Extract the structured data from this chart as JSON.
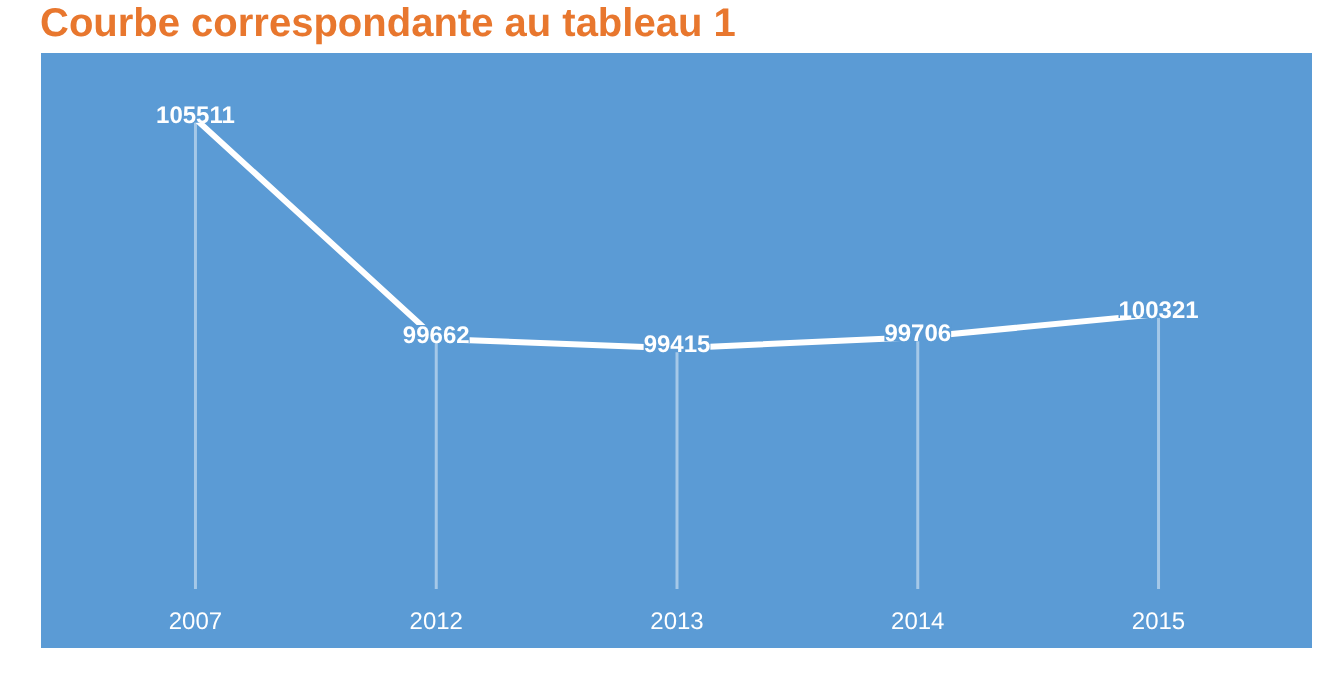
{
  "chart_data": {
    "type": "line",
    "title": "Courbe correspondante au tableau 1",
    "categories": [
      "2007",
      "2012",
      "2013",
      "2014",
      "2015"
    ],
    "values": [
      105511,
      99662,
      99415,
      99706,
      100321
    ],
    "color": "#ffffff",
    "data_labels": true
  }
}
